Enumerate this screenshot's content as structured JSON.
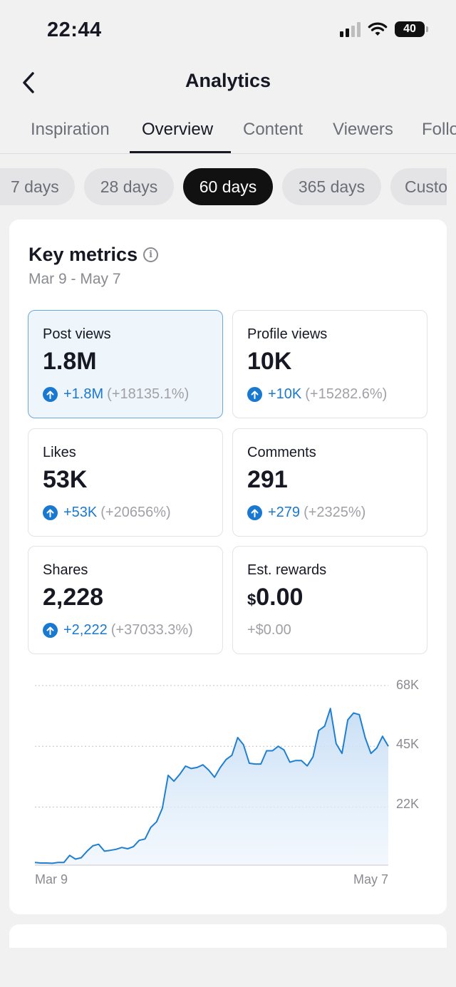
{
  "status_bar": {
    "time": "22:44",
    "battery": "40",
    "icons": [
      "signal-icon",
      "wifi-icon",
      "battery-icon"
    ]
  },
  "header": {
    "title": "Analytics",
    "back_icon": "chevron-left-icon"
  },
  "tabs": [
    {
      "label": "Inspiration",
      "active": false
    },
    {
      "label": "Overview",
      "active": true
    },
    {
      "label": "Content",
      "active": false
    },
    {
      "label": "Viewers",
      "active": false
    },
    {
      "label": "Followers",
      "active": false
    }
  ],
  "ranges": [
    {
      "label": "7 days",
      "active": false
    },
    {
      "label": "28 days",
      "active": false
    },
    {
      "label": "60 days",
      "active": true
    },
    {
      "label": "365 days",
      "active": false
    },
    {
      "label": "Custom",
      "active": false
    }
  ],
  "key_metrics": {
    "title": "Key metrics",
    "date_range": "Mar 9 - May 7",
    "items": [
      {
        "label": "Post views",
        "value": "1.8M",
        "change": "+1.8M",
        "pct": "(+18135.1%)",
        "selected": true
      },
      {
        "label": "Profile views",
        "value": "10K",
        "change": "+10K",
        "pct": "(+15282.6%)",
        "selected": false
      },
      {
        "label": "Likes",
        "value": "53K",
        "change": "+53K",
        "pct": "(+20656%)",
        "selected": false
      },
      {
        "label": "Comments",
        "value": "291",
        "change": "+279",
        "pct": "(+2325%)",
        "selected": false
      },
      {
        "label": "Shares",
        "value": "2,228",
        "change": "+2,222",
        "pct": "(+37033.3%)",
        "selected": false
      },
      {
        "label": "Est. rewards",
        "currency": "$",
        "value": "0.00",
        "change": "+$0.00",
        "pct": "",
        "selected": false
      }
    ]
  },
  "chart_data": {
    "type": "area",
    "x_start_label": "Mar 9",
    "x_end_label": "May 7",
    "y_ticks": [
      "68K",
      "45K",
      "22K"
    ],
    "y_tick_values": [
      68000,
      45000,
      22000
    ],
    "ylim": [
      0,
      68000
    ],
    "grid": true,
    "line_color": "#1f7fd1",
    "fill_color": "#cfe3f7",
    "values": [
      1000,
      800,
      800,
      700,
      1000,
      1000,
      3700,
      2300,
      2800,
      5300,
      7300,
      7900,
      5300,
      5600,
      6000,
      6700,
      6200,
      7000,
      9400,
      9900,
      14300,
      16400,
      21600,
      34000,
      31800,
      34400,
      37500,
      36600,
      37000,
      38000,
      36000,
      33300,
      37000,
      40000,
      41600,
      48300,
      45600,
      38600,
      38300,
      38300,
      43300,
      43300,
      45000,
      43600,
      39000,
      39600,
      39600,
      37600,
      41000,
      51000,
      52600,
      59300,
      46000,
      42300,
      55000,
      57600,
      57000,
      48300,
      42300,
      44300,
      48800,
      45000
    ]
  }
}
